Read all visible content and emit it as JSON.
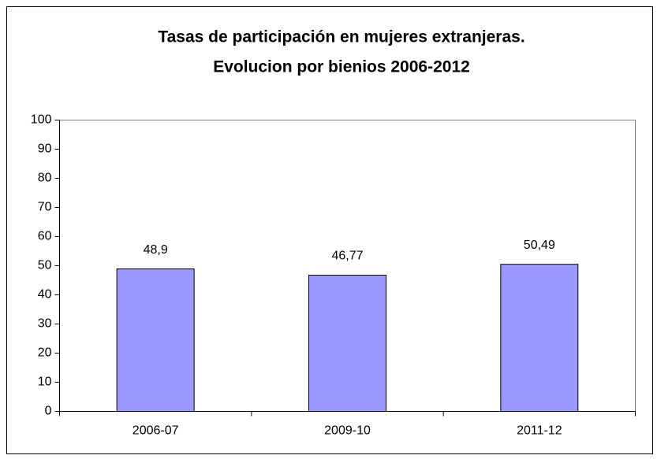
{
  "chart_data": {
    "type": "bar",
    "title": [
      "Tasas de participación en mujeres extranjeras.",
      "Evolucion por bienios 2006-2012"
    ],
    "categories": [
      "2006-07",
      "2009-10",
      "2011-12"
    ],
    "values": [
      48.9,
      46.77,
      50.49
    ],
    "value_labels": [
      "48,9",
      "46,77",
      "50,49"
    ],
    "color": "#9999ff",
    "ylim": [
      0,
      100
    ],
    "yticks": [
      0,
      10,
      20,
      30,
      40,
      50,
      60,
      70,
      80,
      90,
      100
    ],
    "grid": false
  }
}
